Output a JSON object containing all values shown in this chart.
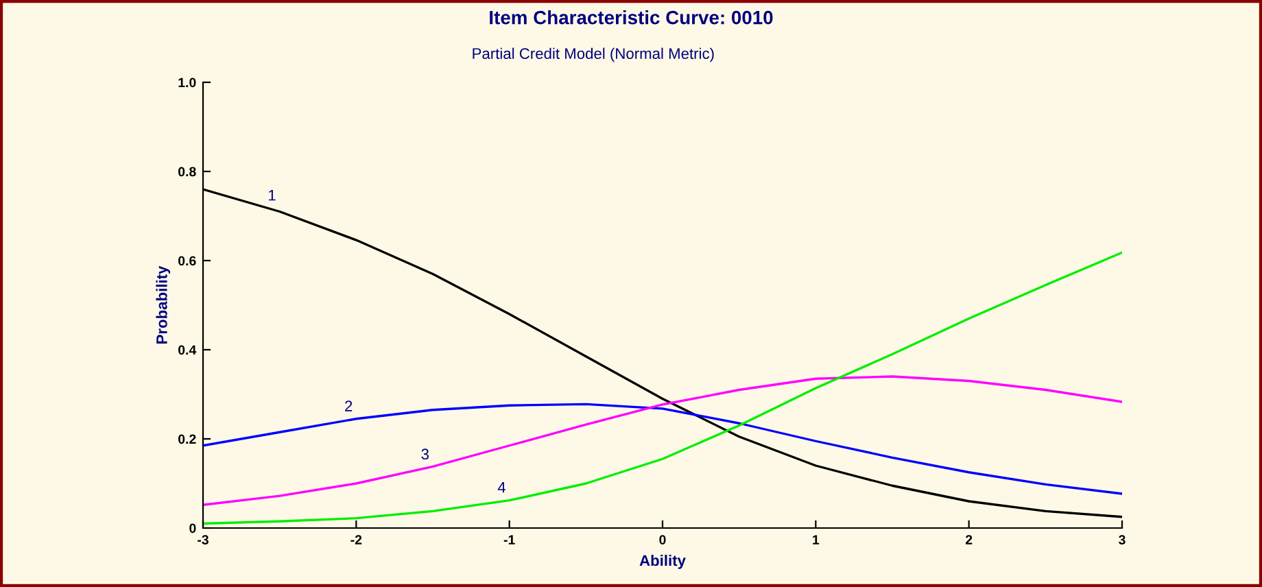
{
  "chart_data": {
    "type": "line",
    "title": "Item Characteristic Curve: 0010",
    "subtitle": "Partial Credit Model (Normal Metric)",
    "xlabel": "Ability",
    "ylabel": "Probability",
    "x": [
      -3,
      -2.5,
      -2,
      -1.5,
      -1,
      -0.5,
      0,
      0.5,
      1,
      1.5,
      2,
      2.5,
      3
    ],
    "series": [
      {
        "name": "1",
        "color": "#000000",
        "values": [
          0.76,
          0.71,
          0.646,
          0.57,
          0.48,
          0.385,
          0.29,
          0.205,
          0.14,
          0.095,
          0.06,
          0.038,
          0.025
        ]
      },
      {
        "name": "2",
        "color": "#0000ff",
        "values": [
          0.185,
          0.215,
          0.245,
          0.265,
          0.275,
          0.278,
          0.268,
          0.235,
          0.195,
          0.158,
          0.125,
          0.098,
          0.077
        ]
      },
      {
        "name": "3",
        "color": "#ff00ff",
        "values": [
          0.052,
          0.072,
          0.1,
          0.138,
          0.185,
          0.232,
          0.277,
          0.31,
          0.335,
          0.34,
          0.33,
          0.31,
          0.283
        ]
      },
      {
        "name": "4",
        "color": "#00ee00",
        "values": [
          0.01,
          0.015,
          0.022,
          0.038,
          0.062,
          0.1,
          0.155,
          0.23,
          0.314,
          0.39,
          0.47,
          0.545,
          0.618
        ]
      }
    ],
    "xlim": [
      -3,
      3
    ],
    "ylim": [
      0,
      1
    ],
    "xticks": [
      -3,
      -2,
      -1,
      0,
      1,
      2,
      3
    ],
    "yticks": [
      0,
      0.2,
      0.4,
      0.6,
      0.8,
      {
        "value": 1,
        "label": "1.0"
      }
    ],
    "grid": false,
    "legend": false,
    "marker": "none",
    "line_style": "solid"
  }
}
